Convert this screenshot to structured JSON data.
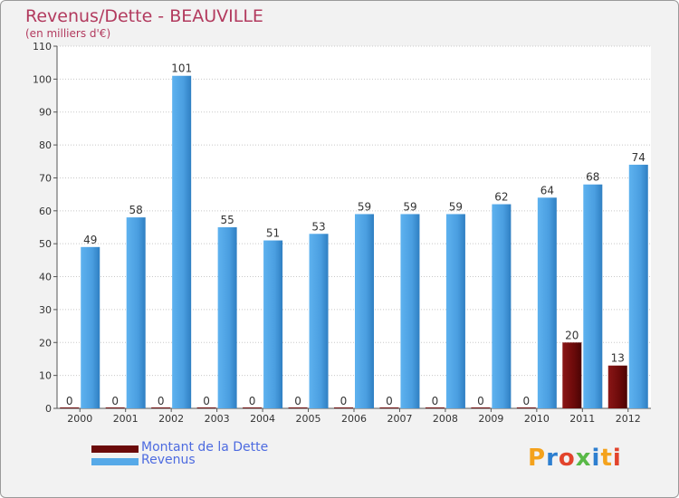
{
  "title": "Revenus/Dette - BEAUVILLE",
  "subtitle": "(en milliers d'€)",
  "legend": [
    {
      "label": "Montant de la Dette",
      "color": "#6b0a0a"
    },
    {
      "label": "Revenus",
      "color": "#56a9e8"
    }
  ],
  "logo": {
    "letters": [
      "P",
      "r",
      "o",
      "x",
      "i",
      "t",
      "i"
    ],
    "colors": [
      "#f4a21c",
      "#2e7fd0",
      "#e2442c",
      "#59b947",
      "#2e7fd0",
      "#f4a21c",
      "#e2442c"
    ]
  },
  "chart_data": {
    "type": "bar",
    "categories": [
      "2000",
      "2001",
      "2002",
      "2003",
      "2004",
      "2005",
      "2006",
      "2007",
      "2008",
      "2009",
      "2010",
      "2011",
      "2012"
    ],
    "series": [
      {
        "name": "Montant de la Dette",
        "values": [
          0,
          0,
          0,
          0,
          0,
          0,
          0,
          0,
          0,
          0,
          0,
          20,
          13
        ],
        "color": "#6b0a0a"
      },
      {
        "name": "Revenus",
        "values": [
          49,
          58,
          101,
          55,
          51,
          53,
          59,
          59,
          59,
          62,
          64,
          68,
          74
        ],
        "color": "#56a9e8"
      }
    ],
    "yticks": [
      0,
      10,
      20,
      30,
      40,
      50,
      60,
      70,
      80,
      90,
      100,
      110
    ],
    "ylim": [
      0,
      110
    ],
    "grid": true,
    "legend_position": "bottom-left"
  }
}
